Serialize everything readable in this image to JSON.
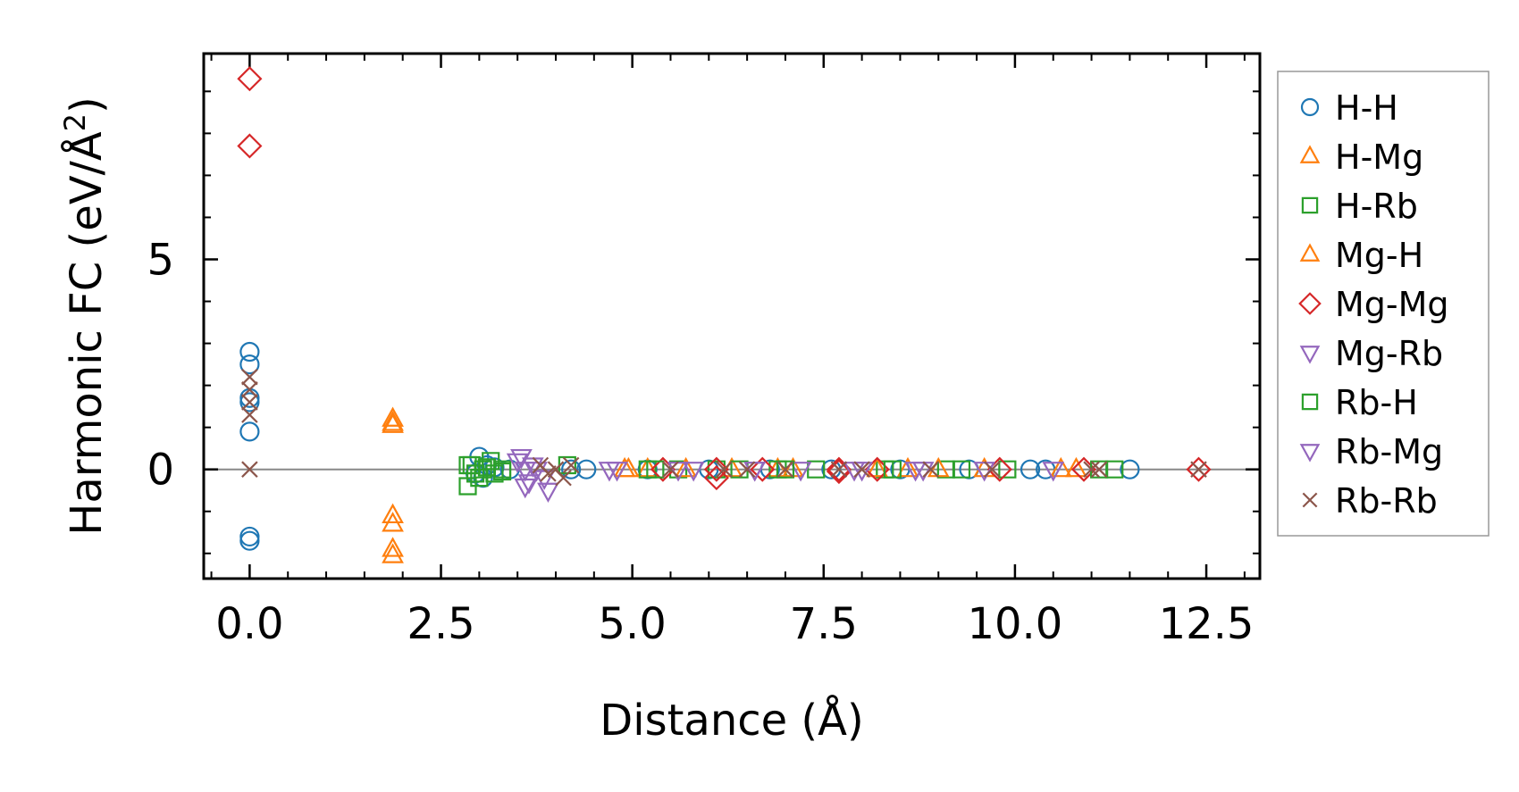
{
  "chart_data": {
    "type": "scatter",
    "title": "",
    "xlabel": "Distance (Å)",
    "ylabel_main": "Harmonic FC (eV/Å",
    "ylabel_sup": "2",
    "ylabel_close": ")",
    "xlim": [
      -0.6,
      13.2
    ],
    "ylim": [
      -2.6,
      9.9
    ],
    "xticks": [
      0.0,
      2.5,
      5.0,
      7.5,
      10.0,
      12.5
    ],
    "xtick_labels": [
      "0.0",
      "2.5",
      "5.0",
      "7.5",
      "10.0",
      "12.5"
    ],
    "yticks": [
      0,
      5
    ],
    "ytick_labels": [
      "0",
      "5"
    ],
    "grid": false,
    "hline_y": 0,
    "legend_position": "outside-right",
    "series": [
      {
        "name": "H-H",
        "marker": "circle",
        "color": "#1f77b4",
        "x": [
          0.0,
          0.0,
          0.0,
          0.0,
          0.0,
          0.0,
          0.0,
          3.0,
          3.05,
          3.1,
          2.95,
          3.2,
          3.4,
          4.2,
          4.4,
          5.2,
          6.0,
          6.8,
          7.6,
          8.5,
          9.4,
          10.2,
          10.4,
          11.5
        ],
        "y": [
          2.8,
          2.5,
          1.6,
          0.9,
          -1.6,
          -1.7,
          1.7,
          0.3,
          -0.2,
          0.1,
          -0.1,
          0.05,
          0.0,
          0.0,
          0.0,
          0.0,
          0.0,
          0.0,
          0.0,
          0.0,
          0.0,
          0.0,
          0.0,
          0.0
        ]
      },
      {
        "name": "H-Mg",
        "marker": "triangle-up",
        "color": "#ff7f0e",
        "x": [
          1.87,
          1.87,
          1.87,
          1.87,
          4.9,
          5.2,
          6.3,
          6.9,
          8.6,
          9.6,
          10.6
        ],
        "y": [
          1.2,
          1.05,
          -1.1,
          -1.3,
          0.0,
          0.0,
          0.0,
          0.0,
          0.0,
          0.0,
          0.0
        ]
      },
      {
        "name": "H-Rb",
        "marker": "square",
        "color": "#2ca02c",
        "x": [
          2.85,
          2.9,
          3.0,
          3.1,
          3.2,
          3.3,
          4.15,
          5.2,
          5.6,
          6.1,
          6.9,
          7.4,
          8.3,
          9.1,
          9.9,
          11.3
        ],
        "y": [
          -0.4,
          0.1,
          -0.2,
          0.05,
          -0.1,
          0.0,
          0.1,
          0.0,
          0.0,
          0.0,
          0.0,
          0.0,
          0.0,
          0.0,
          0.0,
          0.0
        ]
      },
      {
        "name": "Mg-H",
        "marker": "triangle-up",
        "color": "#ff7f0e",
        "x": [
          1.87,
          1.87,
          1.87,
          4.95,
          5.7,
          7.1,
          8.2,
          9.0,
          10.8
        ],
        "y": [
          -1.9,
          -2.05,
          1.1,
          0.0,
          0.0,
          0.0,
          0.0,
          0.0,
          0.0
        ]
      },
      {
        "name": "Mg-Mg",
        "marker": "diamond",
        "color": "#d62728",
        "x": [
          0.0,
          0.0,
          5.4,
          6.1,
          6.1,
          6.7,
          7.7,
          7.7,
          8.2,
          9.8,
          10.9,
          12.4
        ],
        "y": [
          9.3,
          7.7,
          0.0,
          0.0,
          -0.2,
          0.0,
          0.0,
          -0.05,
          0.0,
          0.0,
          0.0,
          0.0
        ]
      },
      {
        "name": "Mg-Rb",
        "marker": "triangle-down",
        "color": "#9467bd",
        "x": [
          3.55,
          3.6,
          3.65,
          3.7,
          3.9,
          4.7,
          5.6,
          6.6,
          7.2,
          8.0,
          8.8,
          9.6
        ],
        "y": [
          0.3,
          0.0,
          -0.3,
          0.1,
          -0.5,
          0.0,
          0.0,
          0.0,
          0.0,
          0.0,
          0.0,
          0.0
        ]
      },
      {
        "name": "Rb-H",
        "marker": "square",
        "color": "#2ca02c",
        "x": [
          2.85,
          2.95,
          3.05,
          3.15,
          3.3,
          5.3,
          6.4,
          7.0,
          8.4,
          9.3,
          11.1
        ],
        "y": [
          0.1,
          -0.1,
          0.0,
          0.2,
          -0.05,
          0.0,
          0.0,
          0.0,
          0.0,
          0.0,
          0.0
        ]
      },
      {
        "name": "Rb-Mg",
        "marker": "triangle-down",
        "color": "#9467bd",
        "x": [
          3.5,
          3.6,
          3.75,
          3.85,
          4.8,
          5.8,
          6.6,
          7.9,
          8.7,
          10.5
        ],
        "y": [
          0.2,
          -0.4,
          0.0,
          -0.2,
          0.0,
          0.0,
          0.0,
          0.0,
          0.0,
          0.0
        ]
      },
      {
        "name": "Rb-Rb",
        "marker": "x",
        "color": "#8c564b",
        "x": [
          0.0,
          0.0,
          0.0,
          0.0,
          0.0,
          3.8,
          3.9,
          4.0,
          4.1,
          4.2,
          5.5,
          6.2,
          6.5,
          7.0,
          7.7,
          8.0,
          8.9,
          9.7,
          11.0,
          11.1,
          12.4
        ],
        "y": [
          2.2,
          1.9,
          1.6,
          1.3,
          0.0,
          0.1,
          -0.1,
          0.0,
          -0.2,
          0.1,
          0.0,
          0.0,
          0.0,
          0.0,
          0.0,
          0.0,
          0.0,
          0.0,
          0.0,
          0.0,
          0.0
        ]
      }
    ]
  }
}
